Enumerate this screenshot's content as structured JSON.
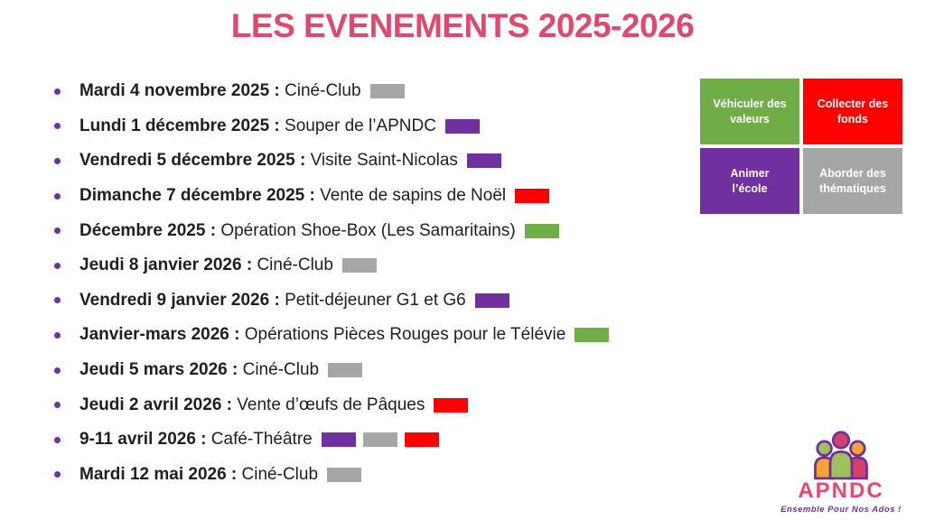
{
  "title": "LES EVENEMENTS 2025-2026",
  "colors": {
    "gray": "#a6a6a6",
    "purple": "#7030a0",
    "red": "#ff0000",
    "green": "#70ad47",
    "title_pink": "#e0496e",
    "bullet_purple": "#7030a0",
    "text_dark": "#1f1f1f"
  },
  "events": [
    {
      "date": "Mardi 4 novembre 2025 :",
      "label": "Ciné-Club",
      "tags": [
        "gray"
      ]
    },
    {
      "date": "Lundi 1 décembre 2025 :",
      "label": "Souper de l’APNDC",
      "tags": [
        "purple"
      ]
    },
    {
      "date": "Vendredi 5 décembre 2025 :",
      "label": "Visite Saint-Nicolas",
      "tags": [
        "purple"
      ]
    },
    {
      "date": "Dimanche 7 décembre 2025 :",
      "label": "Vente de sapins de Noël",
      "tags": [
        "red"
      ]
    },
    {
      "date": "Décembre 2025 :",
      "label": "Opération Shoe-Box (Les Samaritains)",
      "tags": [
        "green"
      ]
    },
    {
      "date": "Jeudi 8 janvier 2026 :",
      "label": "Ciné-Club",
      "tags": [
        "gray"
      ]
    },
    {
      "date": "Vendredi 9 janvier 2026 :",
      "label": "Petit-déjeuner G1 et G6",
      "tags": [
        "purple"
      ]
    },
    {
      "date": "Janvier-mars 2026 :",
      "label": "Opérations Pièces Rouges pour le Télévie",
      "tags": [
        "green"
      ]
    },
    {
      "date": "Jeudi 5 mars 2026 :",
      "label": "Ciné-Club",
      "tags": [
        "gray"
      ]
    },
    {
      "date": "Jeudi 2 avril 2026 :",
      "label": "Vente d’œufs de Pâques",
      "tags": [
        "red"
      ]
    },
    {
      "date": "9-11 avril 2026 :",
      "label": "Café-Théâtre",
      "tags": [
        "purple",
        "gray",
        "red"
      ]
    },
    {
      "date": "Mardi 12 mai 2026 :",
      "label": "Ciné-Club",
      "tags": [
        "gray"
      ]
    }
  ],
  "legend": {
    "cells": [
      {
        "label": "Véhiculer des\nvaleurs",
        "color": "green"
      },
      {
        "label": "Collecter des\nfonds",
        "color": "red"
      },
      {
        "label": "Animer\nl’école",
        "color": "purple"
      },
      {
        "label": "Aborder des\nthématiques",
        "color": "gray"
      }
    ]
  },
  "logo": {
    "name": "APNDC",
    "tagline": "Ensemble Pour Nos Ados !"
  }
}
